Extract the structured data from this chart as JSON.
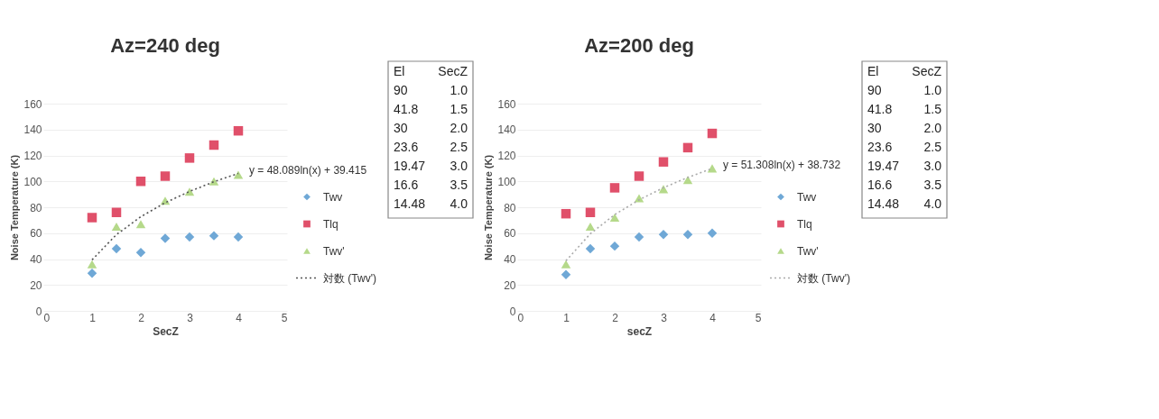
{
  "chart_data": [
    {
      "type": "scatter",
      "title": "Az=240 deg",
      "xlabel": "SecZ",
      "ylabel": "Noise Temperature (K)",
      "x": [
        1,
        1.5,
        2,
        2.5,
        3,
        3.5,
        4
      ],
      "xlim": [
        0,
        5
      ],
      "xticks": [
        0,
        1,
        2,
        3,
        4,
        5
      ],
      "ylim": [
        0,
        160
      ],
      "yticks": [
        0,
        20,
        40,
        60,
        80,
        100,
        120,
        140,
        160
      ],
      "grid": "y",
      "legend": "right",
      "series": [
        {
          "name": "Twv",
          "color": "#6fa8d6",
          "marker": "diamond",
          "values": [
            29,
            48,
            45,
            56,
            57,
            58,
            57
          ]
        },
        {
          "name": "Tlq",
          "color": "#e0506a",
          "marker": "square",
          "values": [
            72,
            76,
            100,
            104,
            118,
            128,
            139
          ]
        },
        {
          "name": "Twv'",
          "color": "#b5d98a",
          "marker": "triangle",
          "values": [
            36,
            65,
            67,
            85,
            92,
            100,
            105
          ]
        },
        {
          "name": "対数 (Twv')",
          "type": "line",
          "color": "#555555",
          "line_style": "dotted",
          "values": [
            39.4,
            58.9,
            72.7,
            83.5,
            92.2,
            99.7,
            106.1
          ]
        }
      ],
      "annotations": [
        {
          "text": "y = 48.089ln(x) + 39.415",
          "x": 4,
          "y": 106
        },
        "El",
        "SecZ",
        "90",
        "1.0",
        "41.8",
        "1.5",
        "30",
        "2.0",
        "23.6",
        "2.5",
        "19.47",
        "3.0",
        "16.6",
        "3.5",
        "14.48",
        "4.0"
      ]
    },
    {
      "type": "scatter",
      "title": "Az=200 deg",
      "xlabel": "secZ",
      "ylabel": "Noise Temperature (K)",
      "x": [
        1,
        1.5,
        2,
        2.5,
        3,
        3.5,
        4
      ],
      "xlim": [
        0,
        5
      ],
      "xticks": [
        0,
        1,
        2,
        3,
        4,
        5
      ],
      "ylim": [
        0,
        160
      ],
      "yticks": [
        0,
        20,
        40,
        60,
        80,
        100,
        120,
        140,
        160
      ],
      "grid": "y",
      "legend": "right",
      "series": [
        {
          "name": "Twv",
          "color": "#6fa8d6",
          "marker": "diamond",
          "values": [
            28,
            48,
            50,
            57,
            59,
            59,
            60
          ]
        },
        {
          "name": "Tlq",
          "color": "#e0506a",
          "marker": "square",
          "values": [
            75,
            76,
            95,
            104,
            115,
            126,
            137
          ]
        },
        {
          "name": "Twv'",
          "color": "#b5d98a",
          "marker": "triangle",
          "values": [
            36,
            65,
            72,
            87,
            94,
            101,
            110
          ]
        },
        {
          "name": "対数 (Twv')",
          "type": "line",
          "color": "#aaaaaa",
          "line_style": "dotted",
          "values": [
            38.7,
            59.5,
            74.3,
            85.7,
            95.1,
            103.0,
            109.9
          ]
        }
      ],
      "annotations": [
        {
          "text": "y = 51.308ln(x) + 38.732",
          "x": 4,
          "y": 110
        },
        "El",
        "SecZ",
        "90",
        "1.0",
        "41.8",
        "1.5",
        "30",
        "2.0",
        "23.6",
        "2.5",
        "19.47",
        "3.0",
        "16.6",
        "3.5",
        "14.48",
        "4.0"
      ]
    }
  ]
}
